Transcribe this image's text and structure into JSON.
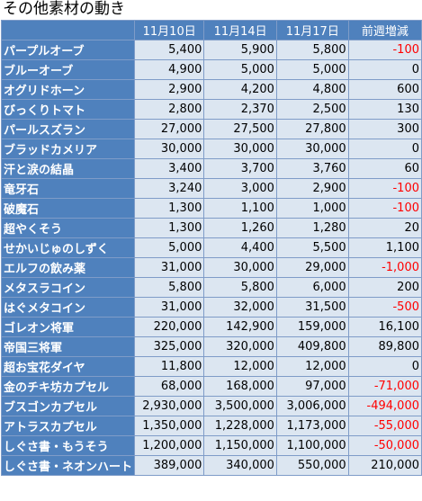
{
  "title": "その他素材の動き",
  "headers": [
    "",
    "11月10日",
    "11月14日",
    "11月17日",
    "前週増減"
  ],
  "negative_color": "#ff0000",
  "header_color": "#4f81bd",
  "cell_color": "#dce6f1",
  "rows": [
    {
      "name": "パープルオーブ",
      "d1110": "5,400",
      "d1114": "5,900",
      "d1117": "5,800",
      "change": "-100"
    },
    {
      "name": "ブルーオーブ",
      "d1110": "4,900",
      "d1114": "5,000",
      "d1117": "5,000",
      "change": "0"
    },
    {
      "name": "オグリドホーン",
      "d1110": "2,900",
      "d1114": "4,200",
      "d1117": "4,800",
      "change": "600"
    },
    {
      "name": "びっくりトマト",
      "d1110": "2,800",
      "d1114": "2,370",
      "d1117": "2,500",
      "change": "130"
    },
    {
      "name": "パールスズラン",
      "d1110": "27,000",
      "d1114": "27,500",
      "d1117": "27,800",
      "change": "300"
    },
    {
      "name": "ブラッドカメリア",
      "d1110": "30,000",
      "d1114": "30,000",
      "d1117": "30,000",
      "change": "0"
    },
    {
      "name": "汗と涙の結晶",
      "d1110": "3,400",
      "d1114": "3,700",
      "d1117": "3,760",
      "change": "60"
    },
    {
      "name": "竜牙石",
      "d1110": "3,240",
      "d1114": "3,000",
      "d1117": "2,900",
      "change": "-100"
    },
    {
      "name": "破魔石",
      "d1110": "1,300",
      "d1114": "1,100",
      "d1117": "1,000",
      "change": "-100"
    },
    {
      "name": "超やくそう",
      "d1110": "1,300",
      "d1114": "1,260",
      "d1117": "1,280",
      "change": "20"
    },
    {
      "name": "せかいじゅのしずく",
      "d1110": "5,000",
      "d1114": "4,400",
      "d1117": "5,500",
      "change": "1,100"
    },
    {
      "name": "エルフの飲み薬",
      "d1110": "31,000",
      "d1114": "30,000",
      "d1117": "29,000",
      "change": "-1,000"
    },
    {
      "name": "メタスラコイン",
      "d1110": "5,800",
      "d1114": "5,800",
      "d1117": "6,000",
      "change": "200"
    },
    {
      "name": "はぐメタコイン",
      "d1110": "31,000",
      "d1114": "32,000",
      "d1117": "31,500",
      "change": "-500"
    },
    {
      "name": "ゴレオン将軍",
      "d1110": "220,000",
      "d1114": "142,900",
      "d1117": "159,000",
      "change": "16,100"
    },
    {
      "name": "帝国三将軍",
      "d1110": "325,000",
      "d1114": "320,000",
      "d1117": "409,800",
      "change": "89,800"
    },
    {
      "name": "超お宝花ダイヤ",
      "d1110": "11,800",
      "d1114": "12,000",
      "d1117": "12,000",
      "change": "0"
    },
    {
      "name": "金のチキ坊カプセル",
      "d1110": "68,000",
      "d1114": "168,000",
      "d1117": "97,000",
      "change": "-71,000"
    },
    {
      "name": "ブスゴンカプセル",
      "d1110": "2,930,000",
      "d1114": "3,500,000",
      "d1117": "3,006,000",
      "change": "-494,000"
    },
    {
      "name": "アトラスカプセル",
      "d1110": "1,350,000",
      "d1114": "1,228,000",
      "d1117": "1,173,000",
      "change": "-55,000"
    },
    {
      "name": "しぐさ書・もうそう",
      "d1110": "1,200,000",
      "d1114": "1,150,000",
      "d1117": "1,100,000",
      "change": "-50,000"
    },
    {
      "name": "しぐさ書・ネオンハート",
      "d1110": "389,000",
      "d1114": "340,000",
      "d1117": "550,000",
      "change": "210,000"
    }
  ]
}
